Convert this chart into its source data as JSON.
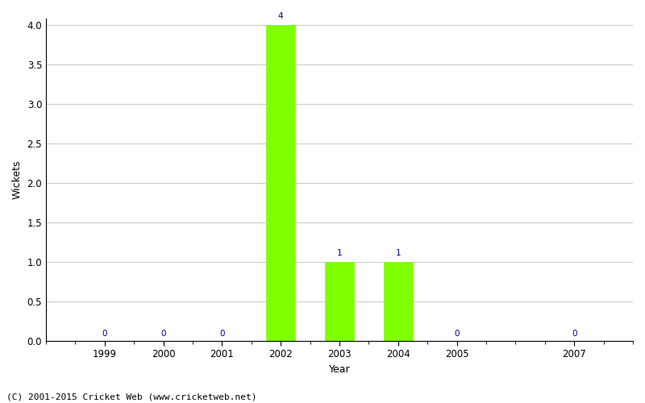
{
  "years": [
    1999,
    2000,
    2001,
    2002,
    2003,
    2004,
    2005,
    2007
  ],
  "wickets": [
    0,
    0,
    0,
    4,
    1,
    1,
    0,
    0
  ],
  "bar_color": "#7fff00",
  "bar_edge_color": "#7fff00",
  "label_color": "#00008b",
  "label_fontsize": 7.5,
  "xlabel": "Year",
  "ylabel": "Wickets",
  "ylim_min": 0.0,
  "ylim_max": 4.0,
  "yticks": [
    0.0,
    0.5,
    1.0,
    1.5,
    2.0,
    2.5,
    3.0,
    3.5,
    4.0
  ],
  "background_color": "#ffffff",
  "grid_color": "#cccccc",
  "footer_text": "(C) 2001-2015 Cricket Web (www.cricketweb.net)",
  "footer_fontsize": 8,
  "bar_width": 0.5,
  "xlim_min": 1998.0,
  "xlim_max": 2008.0,
  "xtick_minor_step": 0.5
}
